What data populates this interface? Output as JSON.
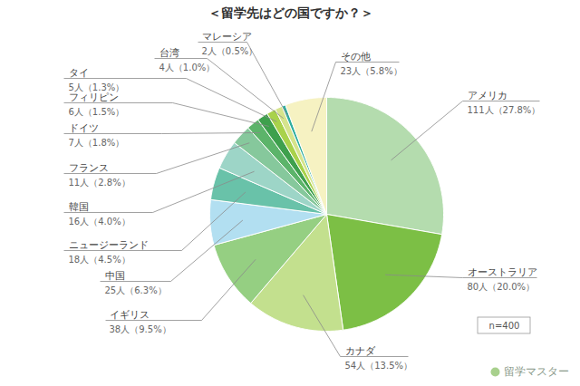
{
  "chart_data": {
    "type": "pie",
    "title": "＜留学先はどの国ですか？＞",
    "categories": [
      "アメリカ",
      "オーストラリア",
      "カナダ",
      "イギリス",
      "中国",
      "ニュージーランド",
      "韓国",
      "フランス",
      "ドイツ",
      "フィリピン",
      "タイ",
      "台湾",
      "マレーシア",
      "その他"
    ],
    "values": [
      111,
      80,
      54,
      38,
      25,
      18,
      16,
      11,
      7,
      6,
      5,
      4,
      2,
      23
    ],
    "value_labels": [
      "111人（27.8%）",
      "80人（20.0%）",
      "54人（13.5%）",
      "38人（9.5%）",
      "25人（6.3%）",
      "18人（4.5%）",
      "16人（4.0%）",
      "11人（2.8%）",
      "7人（1.8%）",
      "6人（1.5%）",
      "5人（1.3%）",
      "4人（1.0%）",
      "2人（0.5%）",
      "23人（5.8%）"
    ],
    "colors": [
      "#b4dcae",
      "#7cbf45",
      "#c3e08e",
      "#95cf82",
      "#b2dff1",
      "#69c2a9",
      "#9dd5c7",
      "#86c89c",
      "#5cb46a",
      "#3ea04d",
      "#a9d24b",
      "#d6e48c",
      "#2fae9f",
      "#f6f2c2"
    ],
    "data_labels": true,
    "annotations": [
      "n=400"
    ],
    "source": "留学マスター"
  }
}
